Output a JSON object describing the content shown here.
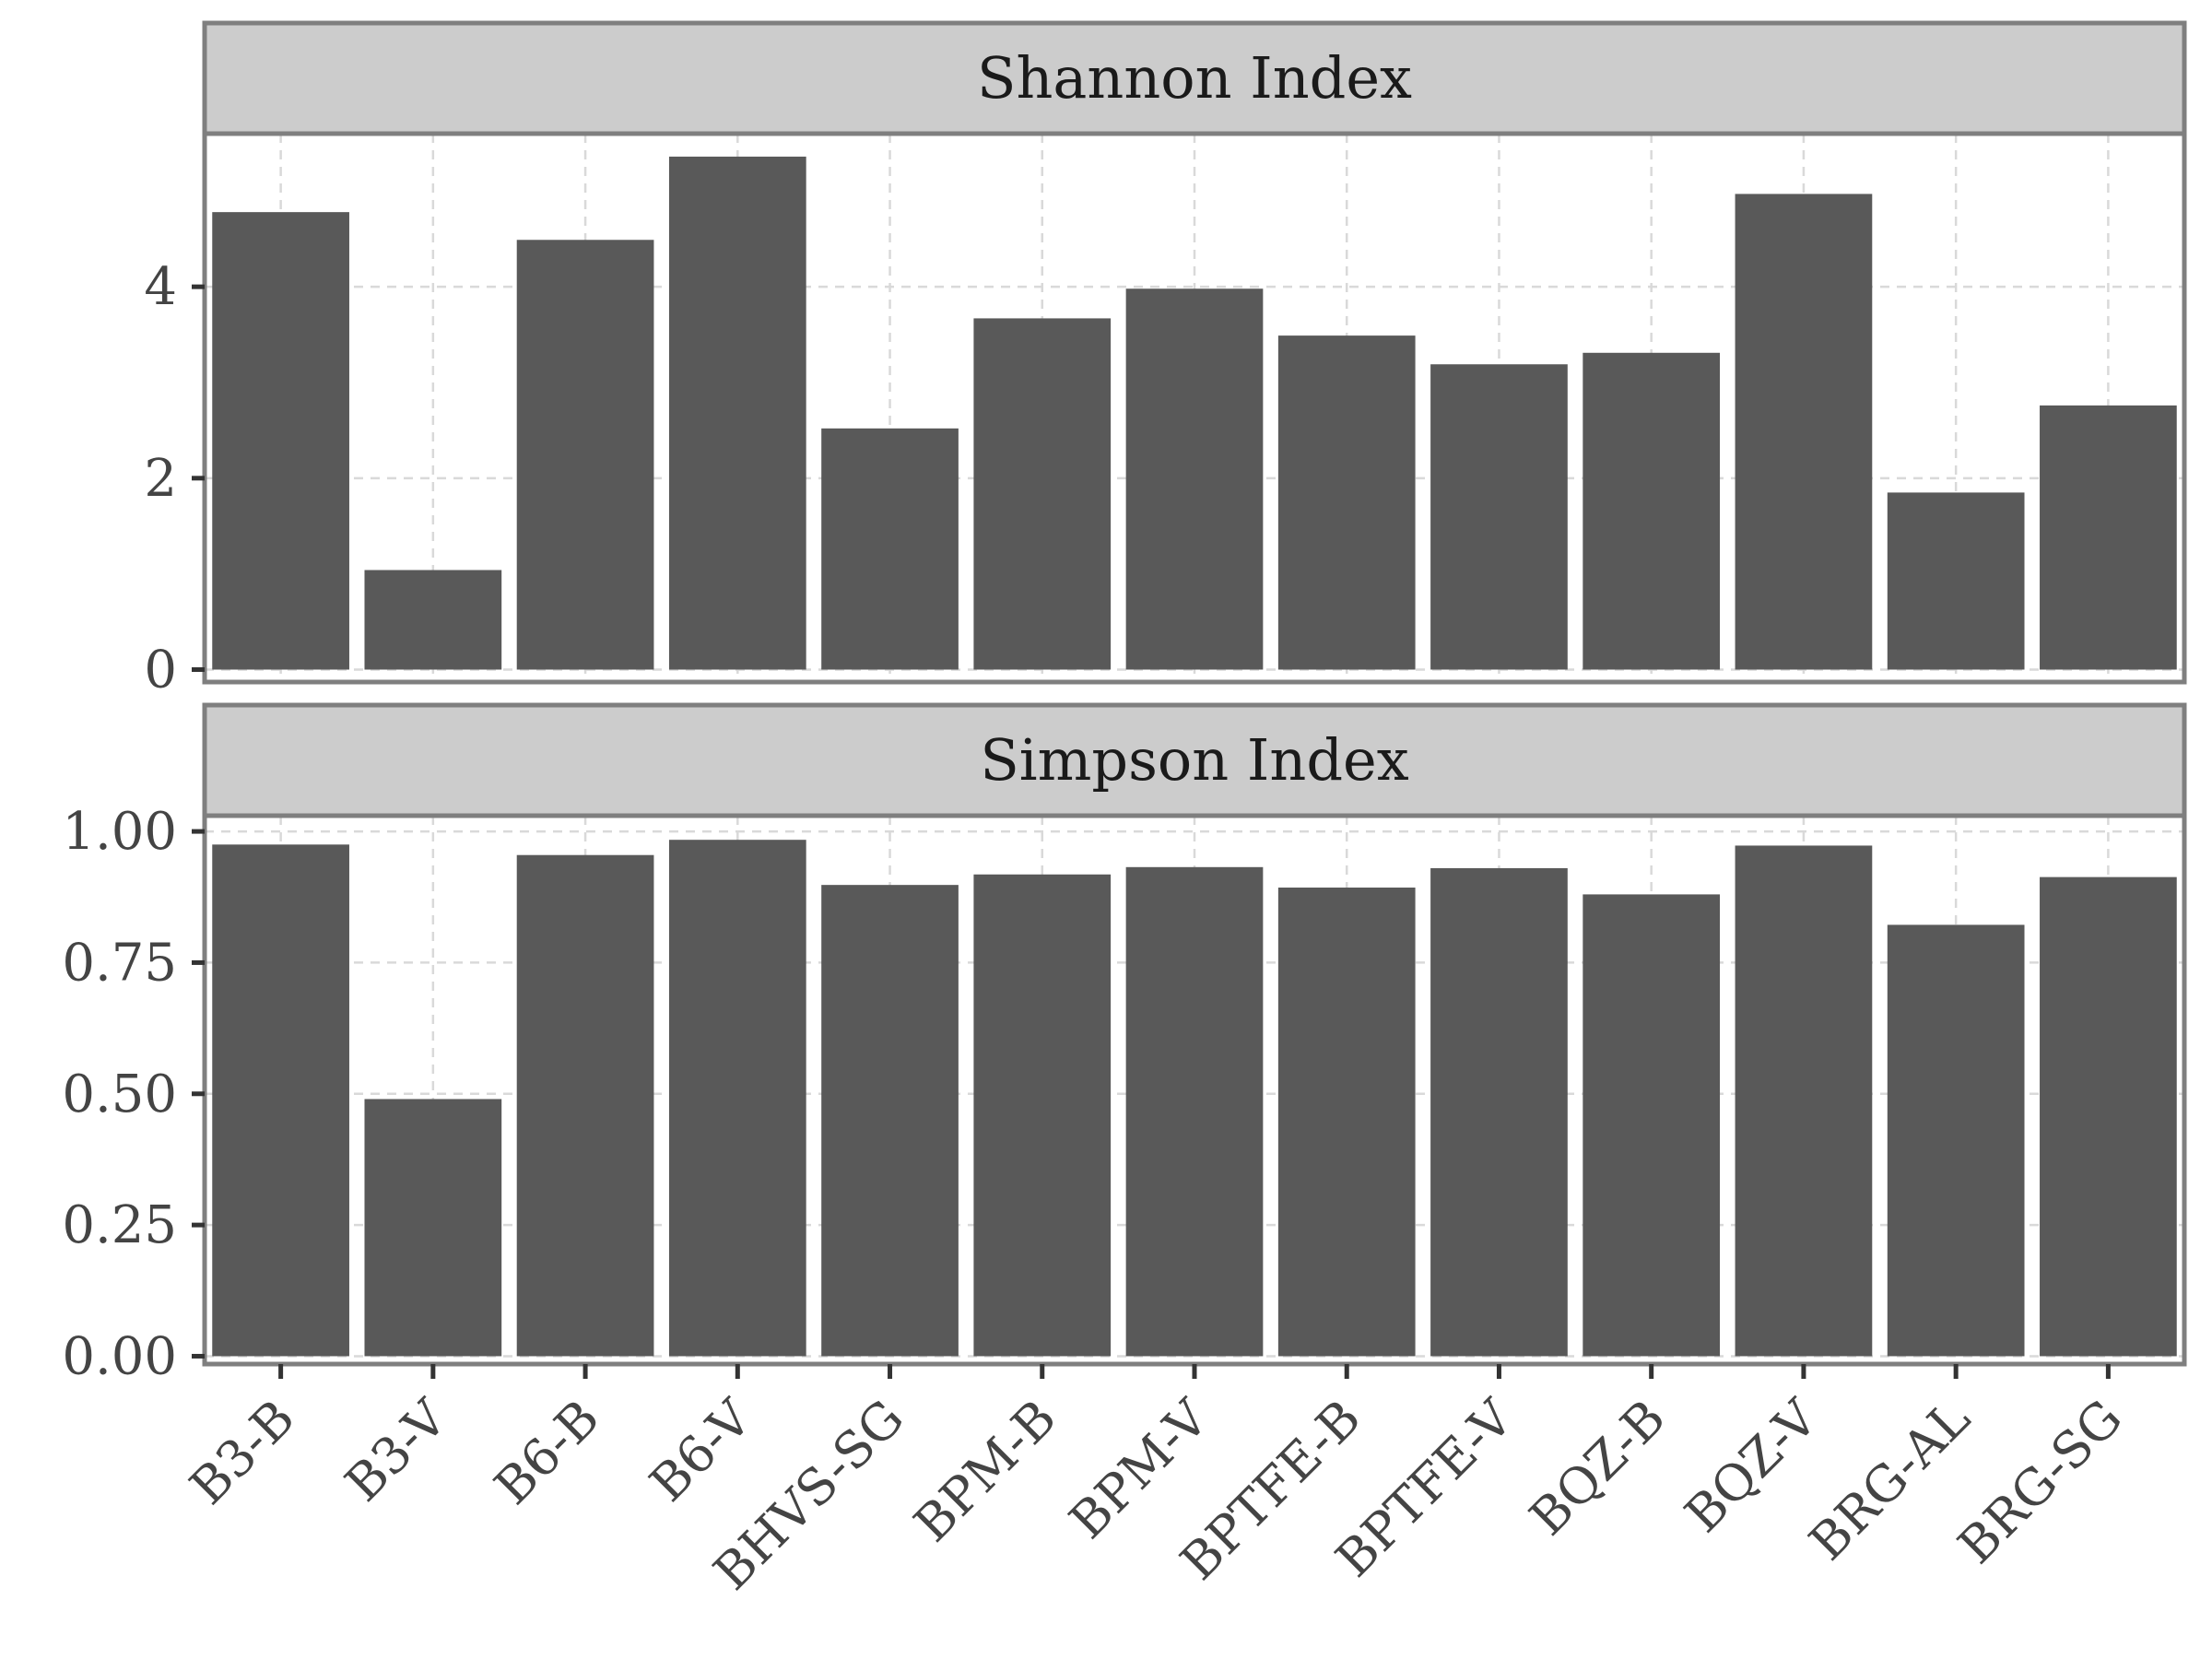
{
  "chart_data": {
    "type": "bar",
    "categories": [
      "B3-B",
      "B3-V",
      "B6-B",
      "B6-V",
      "BHVS-SG",
      "BPM-B",
      "BPM-V",
      "BPTFE-B",
      "BPTFE-V",
      "BQZ-B",
      "BQZ-V",
      "BRG-AL",
      "BRG-SG"
    ],
    "panels": [
      {
        "title": "Shannon Index",
        "values": [
          4.78,
          1.04,
          4.49,
          5.36,
          2.52,
          3.67,
          3.98,
          3.49,
          3.19,
          3.31,
          4.97,
          1.85,
          2.76
        ],
        "ylim": [
          -0.13,
          5.6
        ],
        "yticks": [
          0,
          2,
          4
        ],
        "ytick_labels": [
          "0",
          "2",
          "4"
        ]
      },
      {
        "title": "Simpson Index",
        "values": [
          0.975,
          0.49,
          0.955,
          0.984,
          0.898,
          0.918,
          0.932,
          0.893,
          0.93,
          0.88,
          0.973,
          0.822,
          0.913
        ],
        "ylim": [
          -0.015,
          1.03
        ],
        "yticks": [
          0,
          0.25,
          0.5,
          0.75,
          1.0
        ],
        "ytick_labels": [
          "0.00",
          "0.25",
          "0.50",
          "0.75",
          "1.00"
        ]
      }
    ],
    "xlabel": "",
    "ylabel": "",
    "grid": true,
    "legend": "none",
    "colors": {
      "bar": "#595959",
      "strip_fill": "#cccccc",
      "panel_border": "#7f7f7f",
      "grid": "#d9d9d9"
    }
  }
}
